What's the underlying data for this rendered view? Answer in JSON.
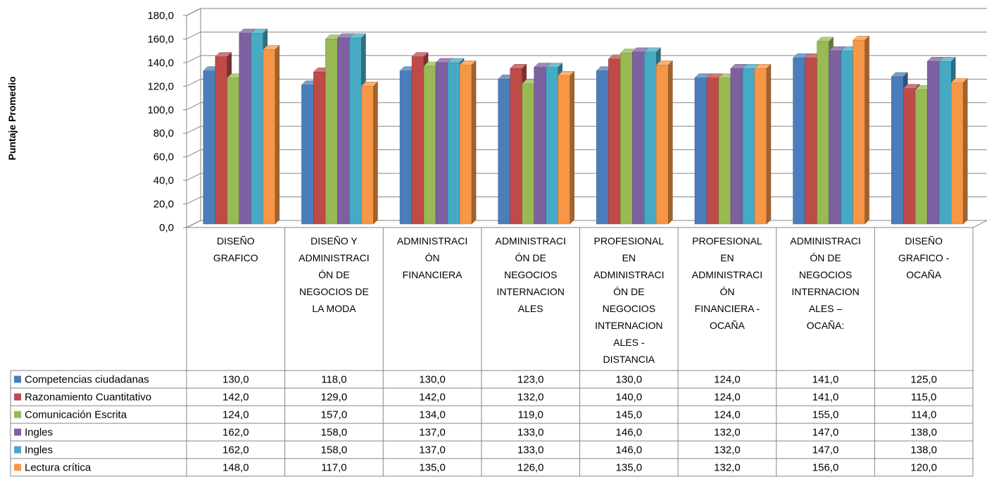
{
  "chart_data": {
    "type": "bar",
    "ylabel": "Puntaje Promedio",
    "ylim": [
      0,
      180
    ],
    "yticks": [
      "0,0",
      "20,0",
      "40,0",
      "60,0",
      "80,0",
      "100,0",
      "120,0",
      "140,0",
      "160,0",
      "180,0"
    ],
    "grid": true,
    "legend": "data-table-left",
    "categories": [
      [
        "DISEÑO",
        "GRAFICO"
      ],
      [
        "DISEÑO Y",
        "ADMINISTRACI",
        "ÓN DE",
        "NEGOCIOS DE",
        "LA MODA"
      ],
      [
        "ADMINISTRACI",
        "ÓN",
        "FINANCIERA"
      ],
      [
        "ADMINISTRACI",
        "ÓN DE",
        "NEGOCIOS",
        "INTERNACION",
        "ALES"
      ],
      [
        "PROFESIONAL",
        "EN",
        "ADMINISTRACI",
        "ÓN DE",
        "NEGOCIOS",
        "INTERNACION",
        "ALES -",
        "DISTANCIA"
      ],
      [
        "PROFESIONAL",
        "EN",
        "ADMINISTRACI",
        "ÓN",
        "FINANCIERA -",
        "OCAÑA"
      ],
      [
        "ADMINISTRACI",
        "ÓN DE",
        "NEGOCIOS",
        "INTERNACION",
        "ALES –",
        "OCAÑA:"
      ],
      [
        "DISEÑO",
        "GRAFICO -",
        "OCAÑA"
      ]
    ],
    "series": [
      {
        "name": "Competencias ciudadanas",
        "color": "#4a7ebb",
        "values": [
          130,
          118,
          130,
          123,
          130,
          124,
          141,
          125
        ],
        "labels": [
          "130,0",
          "118,0",
          "130,0",
          "123,0",
          "130,0",
          "124,0",
          "141,0",
          "125,0"
        ]
      },
      {
        "name": "Razonamiento Cuantitativo",
        "color": "#be4b48",
        "values": [
          142,
          129,
          142,
          132,
          140,
          124,
          141,
          115
        ],
        "labels": [
          "142,0",
          "129,0",
          "142,0",
          "132,0",
          "140,0",
          "124,0",
          "141,0",
          "115,0"
        ]
      },
      {
        "name": "Comunicación Escrita",
        "color": "#98b954",
        "values": [
          124,
          157,
          134,
          119,
          145,
          124,
          155,
          114
        ],
        "labels": [
          "124,0",
          "157,0",
          "134,0",
          "119,0",
          "145,0",
          "124,0",
          "155,0",
          "114,0"
        ]
      },
      {
        "name": "Ingles",
        "color": "#7d60a0",
        "values": [
          162,
          158,
          137,
          133,
          146,
          132,
          147,
          138
        ],
        "labels": [
          "162,0",
          "158,0",
          "137,0",
          "133,0",
          "146,0",
          "132,0",
          "147,0",
          "138,0"
        ]
      },
      {
        "name": "Ingles",
        "color": "#46aac5",
        "values": [
          162,
          158,
          137,
          133,
          146,
          132,
          147,
          138
        ],
        "labels": [
          "162,0",
          "158,0",
          "137,0",
          "133,0",
          "146,0",
          "132,0",
          "147,0",
          "138,0"
        ]
      },
      {
        "name": "Lectura crítica",
        "color": "#f79646",
        "values": [
          148,
          117,
          135,
          126,
          135,
          132,
          156,
          120
        ],
        "labels": [
          "148,0",
          "117,0",
          "135,0",
          "126,0",
          "135,0",
          "132,0",
          "156,0",
          "120,0"
        ]
      }
    ]
  }
}
